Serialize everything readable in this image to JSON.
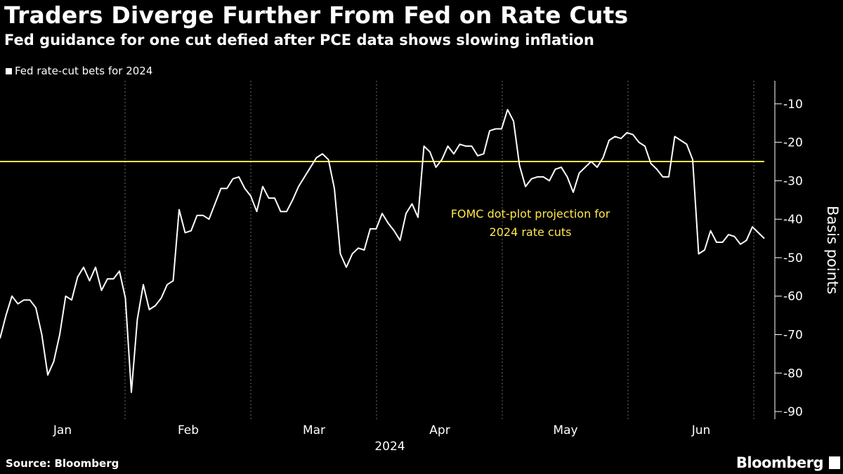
{
  "chart_data": {
    "type": "line",
    "title": "Traders Diverge Further From Fed on Rate Cuts",
    "subtitle": "Fed guidance for one cut defied after PCE data shows slowing inflation",
    "ylabel": "Basis points",
    "xlabel": "2024",
    "ylim": [
      -92,
      -4
    ],
    "yticks": [
      -10,
      -20,
      -30,
      -40,
      -50,
      -60,
      -70,
      -80,
      -90
    ],
    "months": [
      "Jan",
      "Feb",
      "Mar",
      "Apr",
      "May",
      "Jun"
    ],
    "legend_position": "top-left",
    "grid": "vertical dotted month boundaries",
    "series": [
      {
        "name": "Fed rate-cut bets for 2024",
        "color": "#ffffff",
        "values": [
          -71,
          -65,
          -60,
          -62,
          -61,
          -61,
          -63,
          -70,
          -80.5,
          -77,
          -70,
          -60,
          -61,
          -55,
          -52.5,
          -56,
          -52.5,
          -58.5,
          -55.5,
          -55.5,
          -53.5,
          -60.5,
          -85,
          -66,
          -57,
          -63.5,
          -62.5,
          -60.5,
          -57,
          -56,
          -37.5,
          -43.5,
          -43,
          -39,
          -39,
          -40,
          -36,
          -32,
          -32,
          -29.5,
          -29,
          -32,
          -34,
          -38,
          -31.5,
          -34.5,
          -34.5,
          -38,
          -38,
          -35,
          -31.5,
          -29,
          -26.5,
          -24,
          -23,
          -24.5,
          -32,
          -49,
          -52.5,
          -49,
          -47.5,
          -48,
          -42.5,
          -42.5,
          -38.5,
          -41,
          -43,
          -45.5,
          -38.5,
          -36,
          -39.5,
          -21,
          -22.5,
          -26.5,
          -24.5,
          -21,
          -23,
          -20.5,
          -21,
          -21,
          -23.5,
          -23,
          -17,
          -16.5,
          -16.5,
          -11.5,
          -14.5,
          -26,
          -31.5,
          -29.5,
          -29,
          -29,
          -30,
          -27,
          -26.5,
          -29,
          -33,
          -28,
          -26.5,
          -25,
          -26.5,
          -24,
          -19.5,
          -18.5,
          -19,
          -17.5,
          -18,
          -20,
          -21,
          -25.5,
          -27,
          -29,
          -29,
          -18.5,
          -19.5,
          -20.5,
          -24.5,
          -49,
          -48,
          -43,
          -46,
          -46,
          -44,
          -44.5,
          -46.5,
          -45.5,
          -42,
          -43.5,
          -45
        ]
      },
      {
        "name": "FOMC dot-plot projection for 2024 rate cuts",
        "color": "#ffe84d",
        "values": [
          -25
        ]
      }
    ],
    "annotations": [
      "FOMC dot-plot projection for",
      "2024 rate cuts"
    ]
  },
  "footer": {
    "source": "Source: Bloomberg",
    "brand": "Bloomberg"
  }
}
